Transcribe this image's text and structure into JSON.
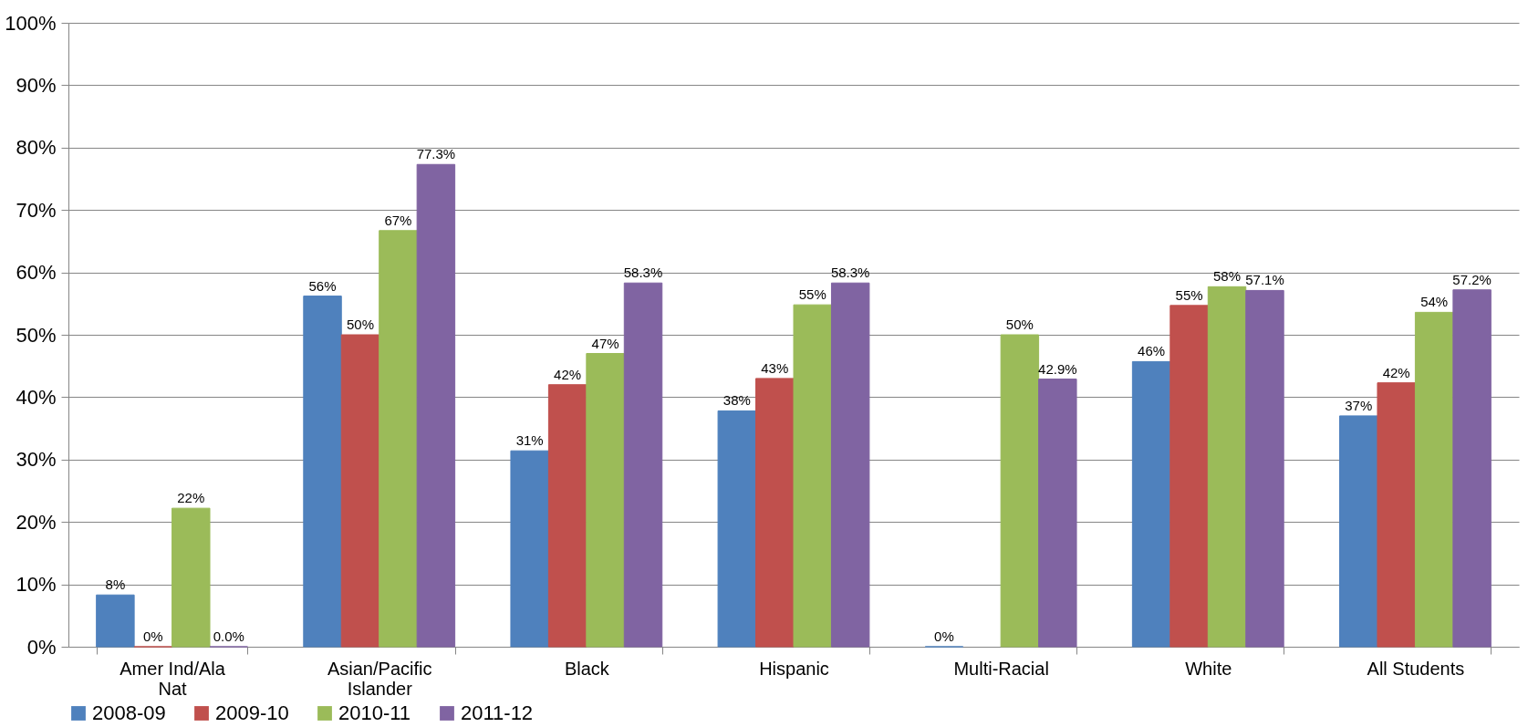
{
  "chart_data": {
    "type": "bar",
    "categories": [
      "Amer Ind/Ala Nat",
      "Asian/Pacific Islander",
      "Black",
      "Hispanic",
      "Multi-Racial",
      "White",
      "All Students"
    ],
    "series": [
      {
        "name": "2008-09",
        "color": "#4f81bd",
        "values": [
          8.3,
          56.2,
          31.4,
          37.8,
          0,
          45.7,
          37.0
        ],
        "value_labels": [
          "8%",
          "56%",
          "31%",
          "38%",
          "0%",
          "46%",
          "37%"
        ]
      },
      {
        "name": "2009-10",
        "color": "#c0504d",
        "values": [
          0,
          50.0,
          42.0,
          43.0,
          null,
          54.7,
          42.3
        ],
        "value_labels": [
          "0%",
          "50%",
          "42%",
          "43%",
          null,
          "55%",
          "42%"
        ]
      },
      {
        "name": "2010-11",
        "color": "#9bbb59",
        "values": [
          22.2,
          66.7,
          47.0,
          54.8,
          50.0,
          57.7,
          53.6
        ],
        "value_labels": [
          "22%",
          "67%",
          "47%",
          "55%",
          "50%",
          "58%",
          "54%"
        ]
      },
      {
        "name": "2011-12",
        "color": "#8064a2",
        "values": [
          0,
          77.3,
          58.3,
          58.3,
          42.9,
          57.1,
          57.2
        ],
        "value_labels": [
          "0.0%",
          "77.3%",
          "58.3%",
          "58.3%",
          "42.9%",
          "57.1%",
          "57.2%"
        ]
      }
    ],
    "ylim": [
      0,
      100
    ],
    "yticks": [
      {
        "value": 0,
        "label": "0%"
      },
      {
        "value": 10,
        "label": "10%"
      },
      {
        "value": 20,
        "label": "20%"
      },
      {
        "value": 30,
        "label": "30%"
      },
      {
        "value": 40,
        "label": "40%"
      },
      {
        "value": 50,
        "label": "50%"
      },
      {
        "value": 60,
        "label": "60%"
      },
      {
        "value": 70,
        "label": "70%"
      },
      {
        "value": 80,
        "label": "80%"
      },
      {
        "value": 90,
        "label": "90%"
      },
      {
        "value": 100,
        "label": "100%"
      }
    ],
    "grid": "y",
    "legend": "bottom"
  }
}
